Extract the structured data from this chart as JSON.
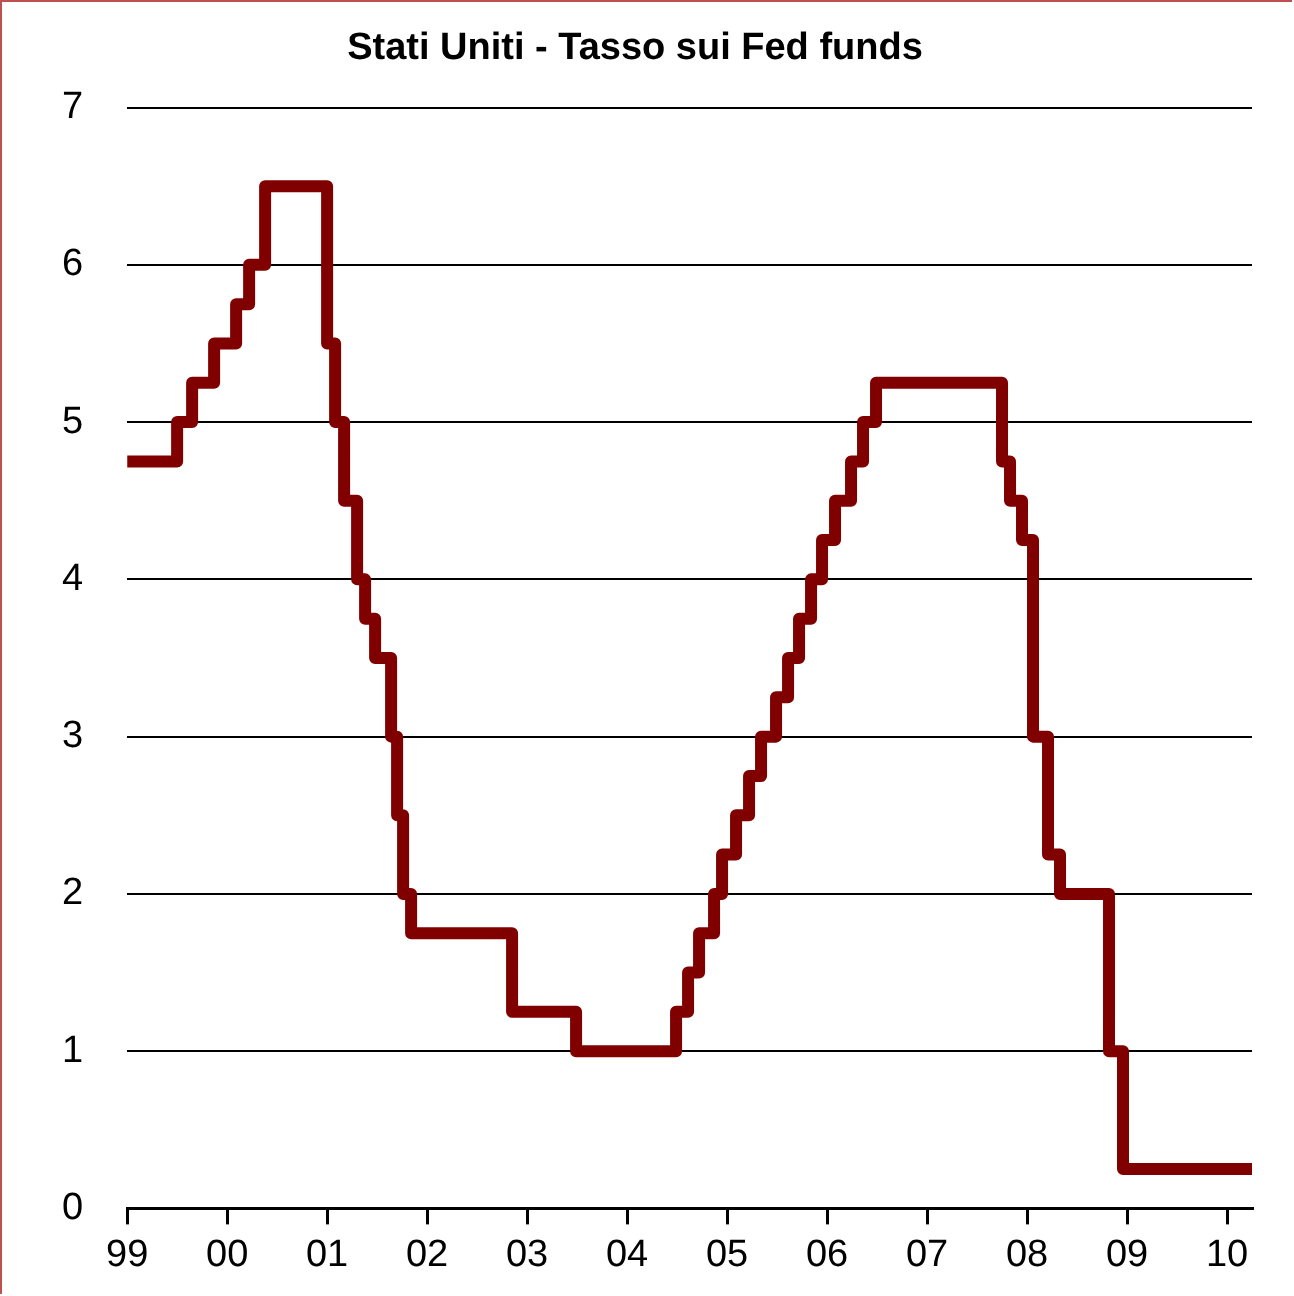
{
  "chart_data": {
    "type": "step",
    "title": "Stati Uniti - Tasso sui Fed funds",
    "x": [
      1999.0,
      1999.5,
      1999.65,
      1999.87,
      2000.09,
      2000.22,
      2000.38,
      2001.0,
      2001.08,
      2001.17,
      2001.3,
      2001.38,
      2001.48,
      2001.64,
      2001.7,
      2001.76,
      2001.84,
      2001.94,
      2002.85,
      2003.49,
      2004.49,
      2004.61,
      2004.72,
      2004.87,
      2004.95,
      2005.09,
      2005.22,
      2005.34,
      2005.49,
      2005.61,
      2005.72,
      2005.84,
      2005.95,
      2006.08,
      2006.24,
      2006.36,
      2006.49,
      2007.75,
      2007.83,
      2007.95,
      2008.06,
      2008.21,
      2008.33,
      2008.82,
      2008.96,
      2010.25
    ],
    "series": [
      {
        "color": "#800000",
        "values": [
          4.75,
          5.0,
          5.25,
          5.5,
          5.75,
          6.0,
          6.5,
          5.5,
          5.0,
          4.5,
          4.0,
          3.75,
          3.5,
          3.0,
          2.5,
          2.0,
          1.75,
          1.75,
          1.25,
          1.0,
          1.25,
          1.5,
          1.75,
          2.0,
          2.25,
          2.5,
          2.75,
          3.0,
          3.25,
          3.5,
          3.75,
          4.0,
          4.25,
          4.5,
          4.75,
          5.0,
          5.25,
          4.75,
          4.5,
          4.25,
          3.0,
          2.25,
          2.0,
          1.0,
          0.25,
          0.25
        ]
      }
    ],
    "xlim": [
      1999,
      2010.25
    ],
    "xticks": [
      {
        "value": 1999,
        "label": "99"
      },
      {
        "value": 2000,
        "label": "00"
      },
      {
        "value": 2001,
        "label": "01"
      },
      {
        "value": 2002,
        "label": "02"
      },
      {
        "value": 2003,
        "label": "03"
      },
      {
        "value": 2004,
        "label": "04"
      },
      {
        "value": 2005,
        "label": "05"
      },
      {
        "value": 2006,
        "label": "06"
      },
      {
        "value": 2007,
        "label": "07"
      },
      {
        "value": 2008,
        "label": "08"
      },
      {
        "value": 2009,
        "label": "09"
      },
      {
        "value": 2010,
        "label": "10"
      }
    ],
    "ylim": [
      0,
      7
    ],
    "yticks": [
      0,
      1,
      2,
      3,
      4,
      5,
      6,
      7
    ],
    "grid": "y",
    "legend": false,
    "marker": "none",
    "line_style": "solid"
  }
}
